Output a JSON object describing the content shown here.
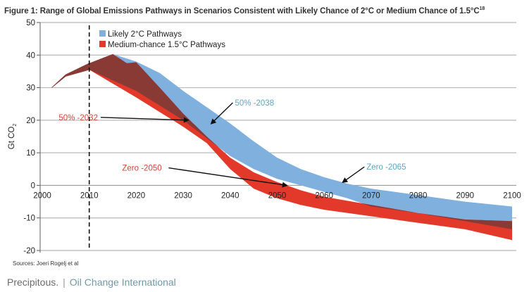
{
  "chart_data": {
    "type": "area",
    "title": "Figure 1: Range of Global Emissions Pathways in Scenarios Consistent with Likely Chance of 2°C or Medium Chance of 1.5°C",
    "title_footnote": "18",
    "xlabel": "",
    "ylabel": "Gt CO2",
    "xlim": [
      2000,
      2100
    ],
    "ylim": [
      -20,
      50
    ],
    "x_ticks": [
      2000,
      2010,
      2020,
      2030,
      2040,
      2050,
      2060,
      2070,
      2080,
      2090,
      2100
    ],
    "y_ticks": [
      50,
      40,
      30,
      20,
      10,
      0,
      -10,
      -20
    ],
    "grid": "horizontal",
    "reference_line": {
      "x": 2010,
      "style": "dashed"
    },
    "legend": {
      "position": "top-left",
      "entries": [
        {
          "label": "Likely 2°C Pathways",
          "color": "#7fb0de"
        },
        {
          "label": "Medium-chance 1.5°C Pathways",
          "color": "#e3392b"
        }
      ]
    },
    "overlap_color": "#8a3a34",
    "history": {
      "x": [
        2002,
        2005,
        2010
      ],
      "upper": [
        30,
        34,
        37.5
      ],
      "lower": [
        30,
        33.5,
        35.5
      ]
    },
    "series": [
      {
        "name": "Likely 2°C Pathways",
        "color": "#7fb0de",
        "upper": {
          "x": [
            2010,
            2015,
            2020,
            2025,
            2030,
            2035,
            2040,
            2045,
            2050,
            2055,
            2060,
            2065,
            2070,
            2080,
            2090,
            2100
          ],
          "y": [
            37.5,
            40.3,
            38,
            34.5,
            29,
            24,
            19,
            13.5,
            8.5,
            5,
            2.5,
            0.5,
            -1,
            -3,
            -5,
            -6.5
          ]
        },
        "lower": {
          "x": [
            2010,
            2020,
            2030,
            2040,
            2045,
            2050,
            2055,
            2060,
            2065,
            2070,
            2080,
            2090,
            2100
          ],
          "y": [
            35.5,
            29,
            20,
            9,
            5,
            2,
            0,
            -2,
            -4,
            -6.5,
            -8.5,
            -11,
            -13.5
          ]
        }
      },
      {
        "name": "Medium-chance 1.5°C Pathways",
        "color": "#e3392b",
        "upper": {
          "x": [
            2010,
            2015,
            2018,
            2020,
            2025,
            2030,
            2035,
            2040,
            2045,
            2050,
            2055,
            2060,
            2070,
            2080,
            2090,
            2100
          ],
          "y": [
            37.5,
            40.3,
            37.5,
            37.8,
            30,
            22,
            15,
            8.5,
            4,
            1,
            -1.5,
            -3.5,
            -6,
            -8.5,
            -10.5,
            -11
          ]
        },
        "lower": {
          "x": [
            2010,
            2020,
            2030,
            2035,
            2040,
            2045,
            2050,
            2055,
            2060,
            2070,
            2080,
            2090,
            2100
          ],
          "y": [
            35.5,
            27,
            18,
            13,
            5,
            -1,
            -4,
            -6,
            -7.5,
            -9.5,
            -11.5,
            -13.5,
            -16.8
          ]
        }
      }
    ],
    "annotations": [
      {
        "text": "50% -2038",
        "color": "#5aa6c2",
        "text_at": [
          2041,
          24.5
        ],
        "arrow_to": [
          2036,
          19
        ]
      },
      {
        "text": "50% -2032",
        "color": "#d8423a",
        "text_at": [
          2003.5,
          20
        ],
        "arrow_to": [
          2031,
          20
        ]
      },
      {
        "text": "Zero -2050",
        "color": "#d8423a",
        "text_at": [
          2017,
          4.5
        ],
        "arrow_to": [
          2052,
          0
        ]
      },
      {
        "text": "Zero -2065",
        "color": "#5aa6c2",
        "text_at": [
          2069,
          4.8
        ],
        "arrow_to": [
          2064,
          1
        ]
      }
    ]
  },
  "source": "Sources: Joeri Rogelj et al",
  "footer": {
    "site": "Precipitous.",
    "organization": "Oil Change International"
  }
}
